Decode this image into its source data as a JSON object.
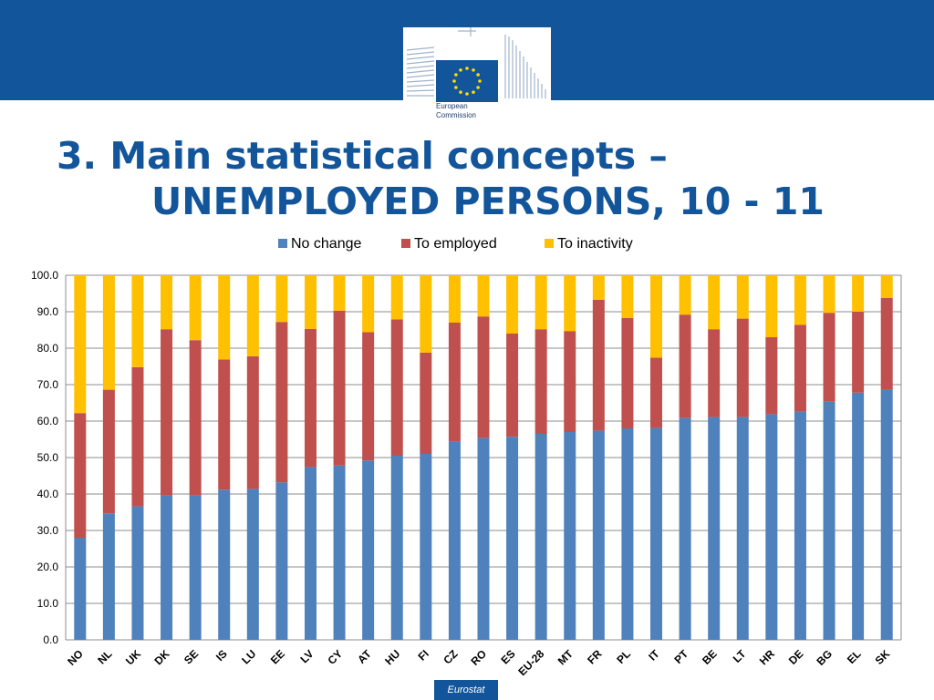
{
  "header": {
    "logo_lines": [
      "European",
      "Commission"
    ]
  },
  "title": {
    "line1": "3. Main statistical concepts –",
    "line2": "UNEMPLOYED PERSONS, 10 - 11"
  },
  "footer": {
    "label": "Eurostat"
  },
  "colors": {
    "banner": "#12559a",
    "title": "#12559a",
    "no_change": "#4f81bd",
    "to_employed": "#c0504d",
    "to_inactivity": "#ffc000"
  },
  "chart_data": {
    "type": "bar",
    "stacked": true,
    "categories": [
      "NO",
      "NL",
      "UK",
      "DK",
      "SE",
      "IS",
      "LU",
      "EE",
      "LV",
      "CY",
      "AT",
      "HU",
      "FI",
      "CZ",
      "RO",
      "ES",
      "EU-28",
      "MT",
      "FR",
      "PL",
      "IT",
      "PT",
      "BE",
      "LT",
      "HR",
      "DE",
      "BG",
      "EL",
      "SK"
    ],
    "series": [
      {
        "name": "No change",
        "color": "#4f81bd",
        "values": [
          28.0,
          34.7,
          36.6,
          39.6,
          39.6,
          41.2,
          41.4,
          43.2,
          47.4,
          47.8,
          49.2,
          50.5,
          51.0,
          54.3,
          55.4,
          55.7,
          56.5,
          57.0,
          57.4,
          58.0,
          58.1,
          60.9,
          61.1,
          61.1,
          61.9,
          62.6,
          65.3,
          67.8,
          68.6
        ]
      },
      {
        "name": "To employed",
        "color": "#c0504d",
        "values": [
          34.2,
          33.9,
          38.2,
          45.6,
          42.6,
          35.7,
          36.4,
          44.0,
          37.9,
          42.5,
          35.2,
          37.4,
          27.8,
          32.7,
          33.3,
          28.3,
          28.7,
          27.7,
          35.9,
          30.3,
          19.3,
          28.3,
          24.1,
          27.0,
          21.1,
          23.8,
          24.4,
          22.2,
          25.2
        ]
      },
      {
        "name": "To inactivity",
        "color": "#ffc000",
        "values": [
          37.8,
          31.4,
          25.2,
          14.8,
          17.8,
          23.1,
          22.2,
          12.8,
          14.7,
          9.7,
          15.6,
          12.1,
          21.2,
          13.0,
          11.3,
          16.0,
          14.8,
          15.3,
          6.7,
          11.7,
          22.6,
          10.8,
          14.8,
          11.9,
          17.0,
          13.6,
          10.3,
          10.0,
          6.2
        ]
      }
    ],
    "ylim": [
      0,
      100
    ],
    "yticks": [
      "0.0",
      "10.0",
      "20.0",
      "30.0",
      "40.0",
      "50.0",
      "60.0",
      "70.0",
      "80.0",
      "90.0",
      "100.0"
    ],
    "grid": true,
    "legend_position": "top"
  }
}
